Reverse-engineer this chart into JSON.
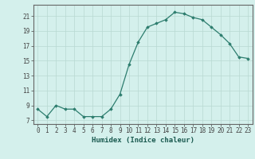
{
  "x": [
    0,
    1,
    2,
    3,
    4,
    5,
    6,
    7,
    8,
    9,
    10,
    11,
    12,
    13,
    14,
    15,
    16,
    17,
    18,
    19,
    20,
    21,
    22,
    23
  ],
  "y": [
    8.5,
    7.5,
    9.0,
    8.5,
    8.5,
    7.5,
    7.5,
    7.5,
    8.5,
    10.5,
    14.5,
    17.5,
    19.5,
    20.0,
    20.5,
    21.5,
    21.3,
    20.8,
    20.5,
    19.5,
    18.5,
    17.3,
    15.5,
    15.3
  ],
  "xlabel": "Humidex (Indice chaleur)",
  "xlim": [
    -0.5,
    23.5
  ],
  "ylim": [
    6.5,
    22.5
  ],
  "yticks": [
    7,
    9,
    11,
    13,
    15,
    17,
    19,
    21
  ],
  "xticks": [
    0,
    1,
    2,
    3,
    4,
    5,
    6,
    7,
    8,
    9,
    10,
    11,
    12,
    13,
    14,
    15,
    16,
    17,
    18,
    19,
    20,
    21,
    22,
    23
  ],
  "line_color": "#2d7d6e",
  "marker": "D",
  "marker_size": 1.8,
  "bg_color": "#d4f0ec",
  "grid_color": "#b8d8d2",
  "xlabel_fontsize": 6.5,
  "tick_fontsize": 5.5
}
